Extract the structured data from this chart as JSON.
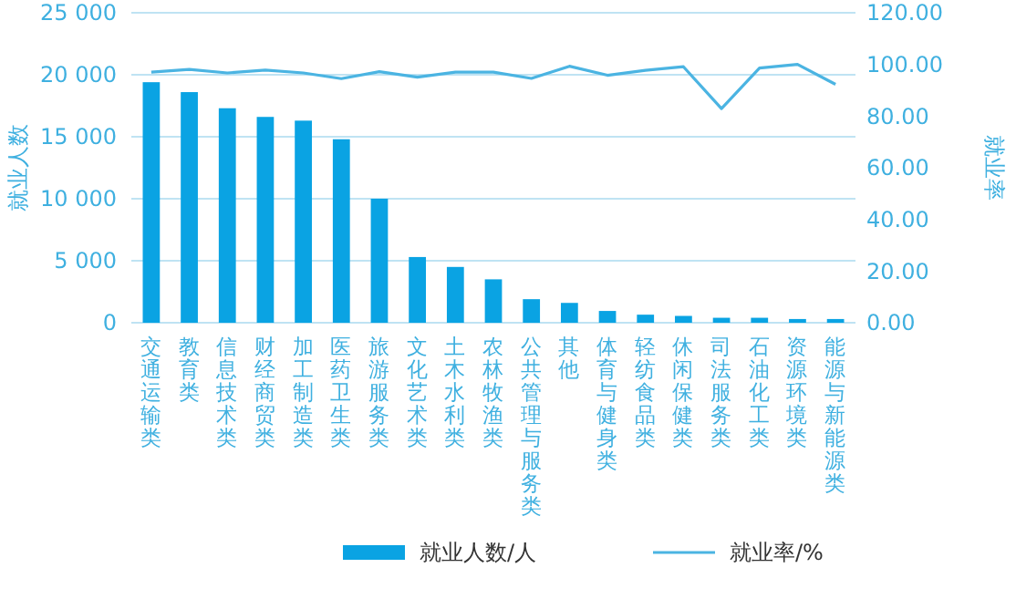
{
  "chart_data": {
    "type": "bar",
    "categories": [
      "交通运输类",
      "教育类",
      "信息技术类",
      "财经商贸类",
      "加工制造类",
      "医药卫生类",
      "旅游服务类",
      "文化艺术类",
      "土木水利类",
      "农林牧渔类",
      "公共管理与服务类",
      "其他",
      "体育与健身类",
      "轻纺食品类",
      "休闲保健类",
      "司法服务类",
      "石油化工类",
      "资源环境类",
      "能源与新能源类"
    ],
    "series": [
      {
        "name": "就业人数/人",
        "color": "#0aa3e3",
        "values": [
          19400,
          18600,
          17300,
          16600,
          16300,
          14800,
          10000,
          5300,
          4500,
          3500,
          1900,
          1600,
          950,
          650,
          550,
          400,
          400,
          300,
          300
        ]
      },
      {
        "name": "就业率/%",
        "type": "line",
        "axis": "y2",
        "color": "#4bb4e2",
        "values": [
          97.0,
          98.1,
          96.7,
          97.8,
          96.7,
          94.5,
          97.2,
          95.1,
          97.0,
          97.0,
          94.6,
          99.3,
          95.8,
          97.7,
          99.1,
          82.9,
          98.6,
          100.0,
          92.3
        ]
      }
    ],
    "ylabel": "就业人数",
    "y2label": "就业率",
    "ylim": [
      0,
      25000
    ],
    "yticks": [
      {
        "value": 0,
        "label": "0"
      },
      {
        "value": 5000,
        "label": "5 000"
      },
      {
        "value": 10000,
        "label": "10 000"
      },
      {
        "value": 15000,
        "label": "15 000"
      },
      {
        "value": 20000,
        "label": "20 000"
      },
      {
        "value": 25000,
        "label": "25 000"
      }
    ],
    "y2lim": [
      0,
      120
    ],
    "y2ticks": [
      {
        "value": 0,
        "label": "0.00"
      },
      {
        "value": 20,
        "label": "20.00"
      },
      {
        "value": 40,
        "label": "40.00"
      },
      {
        "value": 60,
        "label": "60.00"
      },
      {
        "value": 80,
        "label": "80.00"
      },
      {
        "value": 100,
        "label": "100.00"
      },
      {
        "value": 120,
        "label": "120.00"
      }
    ],
    "grid": "y",
    "legend": "bottom",
    "marker": "none",
    "line_style": "solid"
  }
}
